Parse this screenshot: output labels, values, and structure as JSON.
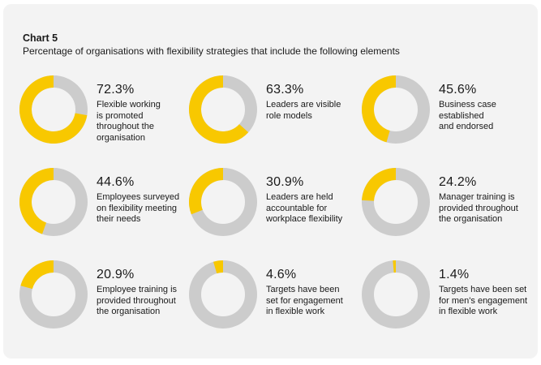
{
  "header": {
    "chart_label": "Chart 5",
    "subtitle": "Percentage of organisations with flexibility strategies that include the following elements"
  },
  "colors": {
    "filled": "#f8c800",
    "remaining": "#cccccc",
    "background": "#f3f3f3"
  },
  "chart_data": {
    "type": "pie",
    "title": "Percentage of organisations with flexibility strategies that include the following elements",
    "items": [
      {
        "value": 72.3,
        "label_pct": "72.3%",
        "description": "Flexible working\nis promoted\nthroughout the\norganisation"
      },
      {
        "value": 63.3,
        "label_pct": "63.3%",
        "description": "Leaders are visible\nrole models"
      },
      {
        "value": 45.6,
        "label_pct": "45.6%",
        "description": "Business case\nestablished\nand endorsed"
      },
      {
        "value": 44.6,
        "label_pct": "44.6%",
        "description": "Employees surveyed\non flexibility meeting\ntheir needs"
      },
      {
        "value": 30.9,
        "label_pct": "30.9%",
        "description": "Leaders are held\naccountable for\nworkplace flexibility"
      },
      {
        "value": 24.2,
        "label_pct": "24.2%",
        "description": "Manager training is\nprovided throughout\nthe organisation"
      },
      {
        "value": 20.9,
        "label_pct": "20.9%",
        "description": "Employee training is\nprovided throughout\nthe organisation"
      },
      {
        "value": 4.6,
        "label_pct": "4.6%",
        "description": "Targets have been\nset for engagement\nin flexible work"
      },
      {
        "value": 1.4,
        "label_pct": "1.4%",
        "description": "Targets have been set\nfor men's engagement\nin flexible work"
      }
    ]
  }
}
